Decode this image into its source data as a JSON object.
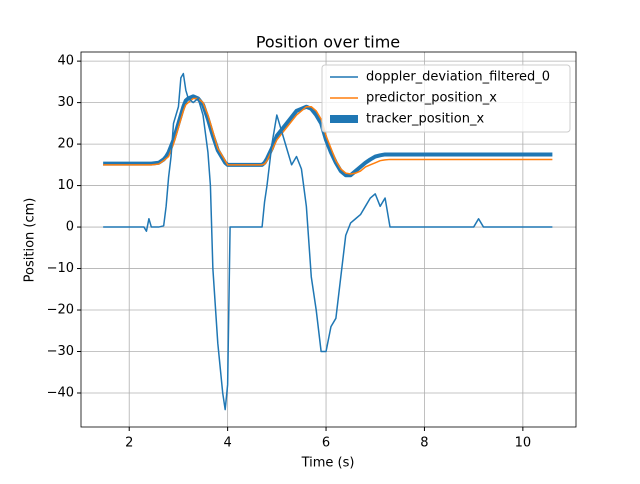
{
  "chart_data": {
    "type": "line",
    "title": "Position over time",
    "xlabel": "Time (s)",
    "ylabel": "Position (cm)",
    "x": [
      1.47,
      2.0,
      2.3,
      2.35,
      2.4,
      2.45,
      2.6,
      2.7,
      2.75,
      2.8,
      2.85,
      2.9,
      3.0,
      3.05,
      3.1,
      3.15,
      3.2,
      3.3,
      3.4,
      3.5,
      3.6,
      3.65,
      3.7,
      3.8,
      3.9,
      3.95,
      4.0,
      4.05,
      4.3,
      4.7,
      4.75,
      4.8,
      4.9,
      5.0,
      5.1,
      5.2,
      5.3,
      5.4,
      5.5,
      5.6,
      5.7,
      5.8,
      5.9,
      6.0,
      6.1,
      6.2,
      6.3,
      6.4,
      6.5,
      6.6,
      6.7,
      6.8,
      6.9,
      7.0,
      7.1,
      7.2,
      7.3,
      7.4,
      8.0,
      9.0,
      9.1,
      9.2,
      10.6
    ],
    "series": [
      {
        "name": "doppler_deviation_filtered_0",
        "color": "#1f77b4",
        "linewidth": 1.5,
        "values": [
          0,
          0,
          0,
          -1,
          2,
          0,
          0,
          0.3,
          5,
          12,
          17,
          25,
          29,
          36,
          37,
          33,
          31,
          30,
          31,
          27,
          18,
          10,
          -10,
          -28,
          -40,
          -44,
          -38,
          0,
          0,
          0,
          6,
          10,
          20,
          27,
          23,
          19,
          15,
          17,
          14,
          5,
          -12,
          -20,
          -30,
          -30,
          -24,
          -22,
          -12,
          -2,
          1,
          2,
          3,
          5,
          7,
          8,
          5,
          7,
          0,
          0,
          0,
          0,
          2,
          0,
          0
        ]
      },
      {
        "name": "predictor_position_x",
        "color": "#ff7f0e",
        "linewidth": 1.5,
        "values": [
          15,
          15,
          15,
          15,
          15,
          15,
          15.2,
          16,
          16.5,
          17,
          18.5,
          20,
          24,
          26,
          28,
          29.5,
          30,
          31,
          31,
          30,
          27,
          25,
          23,
          19,
          17,
          16,
          15,
          15,
          15,
          15,
          15.2,
          16,
          18.5,
          21,
          22.5,
          24,
          25.5,
          27,
          28,
          29,
          29,
          28,
          26,
          22,
          19,
          16,
          14,
          13,
          12.8,
          13,
          13.5,
          14.5,
          15,
          15.5,
          16,
          16.2,
          16.3,
          16.3,
          16.3,
          16.3,
          16.3,
          16.3,
          16.3
        ]
      },
      {
        "name": "tracker_position_x",
        "color": "#1f77b4",
        "linewidth": 4,
        "values": [
          15.3,
          15.3,
          15.3,
          15.3,
          15.3,
          15.3,
          15.5,
          16.3,
          17,
          18,
          19.5,
          21,
          25,
          27,
          29,
          30.5,
          31,
          31.5,
          31,
          29.5,
          26,
          24,
          22,
          18.5,
          16.5,
          15.5,
          15,
          15,
          15,
          15,
          15.5,
          16.5,
          19,
          22,
          23.5,
          25,
          26.5,
          28,
          28.5,
          29,
          28.5,
          27,
          25,
          21,
          18,
          15.5,
          13.5,
          12.5,
          12.5,
          13.5,
          14.5,
          15.5,
          16.3,
          17,
          17.3,
          17.5,
          17.5,
          17.5,
          17.5,
          17.5,
          17.5,
          17.5,
          17.5
        ]
      }
    ],
    "xlim": [
      1.02,
      11.08
    ],
    "ylim": [
      -48.2,
      42.2
    ],
    "xticks": [
      2,
      4,
      6,
      8,
      10
    ],
    "yticks": [
      {
        "value": -40,
        "label": "−40"
      },
      {
        "value": -30,
        "label": "−30"
      },
      {
        "value": -20,
        "label": "−20"
      },
      {
        "value": -10,
        "label": "−10"
      },
      0,
      10,
      20,
      30,
      40
    ],
    "grid": true,
    "legend": "upper right"
  }
}
